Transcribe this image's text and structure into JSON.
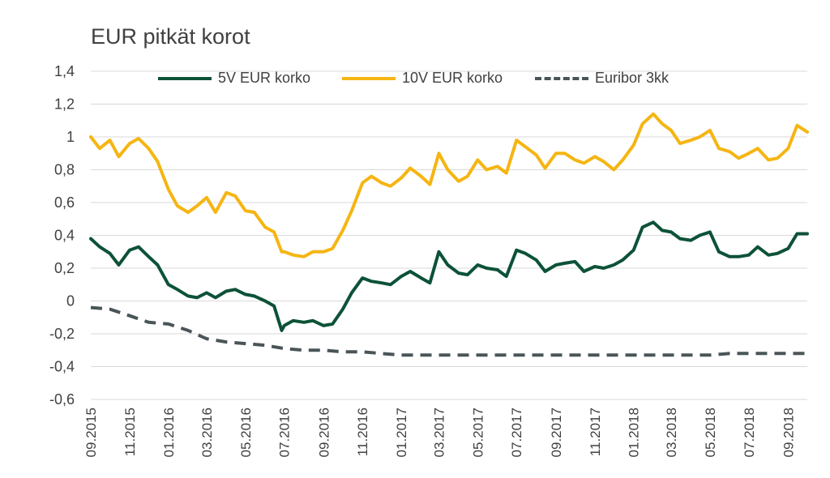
{
  "chart_data": {
    "type": "line",
    "title": "EUR pitkät korot",
    "xlabel": "",
    "ylabel": "",
    "ylim": [
      -0.6,
      1.4
    ],
    "yticks": [
      -0.6,
      -0.4,
      -0.2,
      0,
      0.2,
      0.4,
      0.6,
      0.8,
      1,
      1.2,
      1.4
    ],
    "ytick_labels": [
      "-0,6",
      "-0,4",
      "-0,2",
      "0",
      "0,2",
      "0,4",
      "0,6",
      "0,8",
      "1",
      "1,2",
      "1,4"
    ],
    "xlim": [
      "2015-09",
      "2018-10"
    ],
    "xtick_labels": [
      "09.2015",
      "11.2015",
      "01.2016",
      "03.2016",
      "05.2016",
      "07.2016",
      "09.2016",
      "11.2016",
      "01.2017",
      "03.2017",
      "05.2017",
      "07.2017",
      "09.2017",
      "11.2017",
      "01.2018",
      "03.2018",
      "05.2018",
      "07.2018",
      "09.2018"
    ],
    "grid": "horizontal",
    "legend_position": "top",
    "colors": {
      "5V EUR korko": "#0d5238",
      "10V EUR korko": "#f5b512",
      "Euribor 3kk": "#4a5558",
      "grid": "#d9d9d9"
    },
    "series": [
      {
        "name": "5V EUR korko",
        "style": "solid",
        "x": [
          "2015-09-01",
          "2015-09-15",
          "2015-10-01",
          "2015-10-15",
          "2015-11-01",
          "2015-11-15",
          "2015-12-01",
          "2015-12-15",
          "2016-01-01",
          "2016-01-15",
          "2016-02-01",
          "2016-02-15",
          "2016-03-01",
          "2016-03-15",
          "2016-04-01",
          "2016-04-15",
          "2016-05-01",
          "2016-05-15",
          "2016-06-01",
          "2016-06-15",
          "2016-06-27",
          "2016-07-01",
          "2016-07-15",
          "2016-08-01",
          "2016-08-15",
          "2016-09-01",
          "2016-09-15",
          "2016-10-01",
          "2016-10-15",
          "2016-11-01",
          "2016-11-15",
          "2016-12-01",
          "2016-12-15",
          "2017-01-01",
          "2017-01-15",
          "2017-02-01",
          "2017-02-15",
          "2017-03-01",
          "2017-03-15",
          "2017-04-01",
          "2017-04-15",
          "2017-05-01",
          "2017-05-15",
          "2017-06-01",
          "2017-06-15",
          "2017-07-01",
          "2017-07-15",
          "2017-08-01",
          "2017-08-15",
          "2017-09-01",
          "2017-09-15",
          "2017-10-01",
          "2017-10-15",
          "2017-11-01",
          "2017-11-15",
          "2017-12-01",
          "2017-12-15",
          "2018-01-01",
          "2018-01-15",
          "2018-02-01",
          "2018-02-15",
          "2018-03-01",
          "2018-03-15",
          "2018-04-01",
          "2018-04-15",
          "2018-05-01",
          "2018-05-15",
          "2018-06-01",
          "2018-06-15",
          "2018-07-01",
          "2018-07-15",
          "2018-08-01",
          "2018-08-15",
          "2018-09-01",
          "2018-09-15",
          "2018-10-01"
        ],
        "y": [
          0.38,
          0.33,
          0.29,
          0.22,
          0.31,
          0.33,
          0.27,
          0.22,
          0.1,
          0.07,
          0.03,
          0.02,
          0.05,
          0.02,
          0.06,
          0.07,
          0.04,
          0.03,
          0.0,
          -0.03,
          -0.18,
          -0.15,
          -0.12,
          -0.13,
          -0.12,
          -0.15,
          -0.14,
          -0.05,
          0.05,
          0.14,
          0.12,
          0.11,
          0.1,
          0.15,
          0.18,
          0.14,
          0.11,
          0.3,
          0.22,
          0.17,
          0.16,
          0.22,
          0.2,
          0.19,
          0.15,
          0.31,
          0.29,
          0.25,
          0.18,
          0.22,
          0.23,
          0.24,
          0.18,
          0.21,
          0.2,
          0.22,
          0.25,
          0.31,
          0.45,
          0.48,
          0.43,
          0.42,
          0.38,
          0.37,
          0.4,
          0.42,
          0.3,
          0.27,
          0.27,
          0.28,
          0.33,
          0.28,
          0.29,
          0.32,
          0.41,
          0.41
        ]
      },
      {
        "name": "10V EUR korko",
        "style": "solid",
        "x": [
          "2015-09-01",
          "2015-09-15",
          "2015-10-01",
          "2015-10-15",
          "2015-11-01",
          "2015-11-15",
          "2015-12-01",
          "2015-12-15",
          "2016-01-01",
          "2016-01-15",
          "2016-02-01",
          "2016-02-15",
          "2016-03-01",
          "2016-03-15",
          "2016-04-01",
          "2016-04-15",
          "2016-05-01",
          "2016-05-15",
          "2016-06-01",
          "2016-06-15",
          "2016-06-27",
          "2016-07-01",
          "2016-07-15",
          "2016-08-01",
          "2016-08-15",
          "2016-09-01",
          "2016-09-15",
          "2016-10-01",
          "2016-10-15",
          "2016-11-01",
          "2016-11-15",
          "2016-12-01",
          "2016-12-15",
          "2017-01-01",
          "2017-01-15",
          "2017-02-01",
          "2017-02-15",
          "2017-03-01",
          "2017-03-15",
          "2017-04-01",
          "2017-04-15",
          "2017-05-01",
          "2017-05-15",
          "2017-06-01",
          "2017-06-15",
          "2017-07-01",
          "2017-07-15",
          "2017-08-01",
          "2017-08-15",
          "2017-09-01",
          "2017-09-15",
          "2017-10-01",
          "2017-10-15",
          "2017-11-01",
          "2017-11-15",
          "2017-12-01",
          "2017-12-15",
          "2018-01-01",
          "2018-01-15",
          "2018-02-01",
          "2018-02-15",
          "2018-03-01",
          "2018-03-15",
          "2018-04-01",
          "2018-04-15",
          "2018-05-01",
          "2018-05-15",
          "2018-06-01",
          "2018-06-15",
          "2018-07-01",
          "2018-07-15",
          "2018-08-01",
          "2018-08-15",
          "2018-09-01",
          "2018-09-15",
          "2018-10-01"
        ],
        "y": [
          1.0,
          0.93,
          0.98,
          0.88,
          0.96,
          0.99,
          0.93,
          0.85,
          0.68,
          0.58,
          0.54,
          0.58,
          0.63,
          0.54,
          0.66,
          0.64,
          0.55,
          0.54,
          0.45,
          0.42,
          0.3,
          0.3,
          0.28,
          0.27,
          0.3,
          0.3,
          0.32,
          0.43,
          0.55,
          0.72,
          0.76,
          0.72,
          0.7,
          0.75,
          0.81,
          0.76,
          0.71,
          0.9,
          0.8,
          0.73,
          0.76,
          0.86,
          0.8,
          0.82,
          0.78,
          0.98,
          0.94,
          0.89,
          0.81,
          0.9,
          0.9,
          0.86,
          0.84,
          0.88,
          0.85,
          0.8,
          0.86,
          0.95,
          1.08,
          1.14,
          1.08,
          1.04,
          0.96,
          0.98,
          1.0,
          1.04,
          0.93,
          0.91,
          0.87,
          0.9,
          0.93,
          0.86,
          0.87,
          0.93,
          1.07,
          1.03
        ]
      },
      {
        "name": "Euribor 3kk",
        "style": "dashed",
        "x": [
          "2015-09-01",
          "2015-10-01",
          "2015-11-01",
          "2015-12-01",
          "2016-01-01",
          "2016-02-01",
          "2016-03-01",
          "2016-04-01",
          "2016-05-01",
          "2016-06-01",
          "2016-07-01",
          "2016-08-01",
          "2016-09-01",
          "2016-10-01",
          "2016-11-01",
          "2016-12-01",
          "2017-01-01",
          "2017-02-01",
          "2017-03-01",
          "2017-04-01",
          "2017-05-01",
          "2017-06-01",
          "2017-07-01",
          "2017-08-01",
          "2017-09-01",
          "2017-10-01",
          "2017-11-01",
          "2017-12-01",
          "2018-01-01",
          "2018-02-01",
          "2018-03-01",
          "2018-04-01",
          "2018-05-01",
          "2018-06-01",
          "2018-07-01",
          "2018-08-01",
          "2018-09-01",
          "2018-10-01"
        ],
        "y": [
          -0.04,
          -0.05,
          -0.09,
          -0.13,
          -0.14,
          -0.18,
          -0.23,
          -0.25,
          -0.26,
          -0.27,
          -0.29,
          -0.3,
          -0.3,
          -0.31,
          -0.31,
          -0.32,
          -0.33,
          -0.33,
          -0.33,
          -0.33,
          -0.33,
          -0.33,
          -0.33,
          -0.33,
          -0.33,
          -0.33,
          -0.33,
          -0.33,
          -0.33,
          -0.33,
          -0.33,
          -0.33,
          -0.33,
          -0.32,
          -0.32,
          -0.32,
          -0.32,
          -0.32
        ]
      }
    ]
  }
}
